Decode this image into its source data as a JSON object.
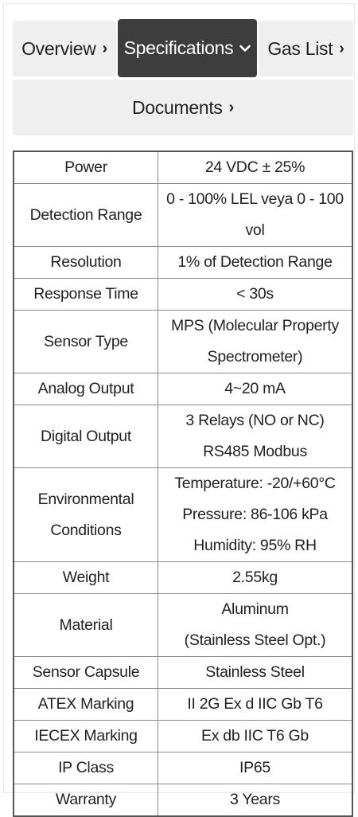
{
  "tabs": {
    "overview": {
      "label": "Overview",
      "icon": "chevron-right-icon"
    },
    "specifications": {
      "label": "Specifications",
      "icon": "chevron-down-icon",
      "active": true
    },
    "gas_list": {
      "label": "Gas List",
      "icon": "chevron-right-icon"
    },
    "documents": {
      "label": "Documents",
      "icon": "chevron-right-icon"
    }
  },
  "colors": {
    "active_tab_bg": "#3d3d3d",
    "inactive_tab_bg": "#efefef",
    "table_border": "#555555"
  },
  "specs": [
    {
      "label": [
        "Power"
      ],
      "value": [
        "24 VDC ± 25%"
      ]
    },
    {
      "label": [
        "Detection Range"
      ],
      "value": [
        "0 - 100% LEL veya 0 - 100 vol"
      ]
    },
    {
      "label": [
        "Resolution"
      ],
      "value": [
        "1% of Detection Range"
      ]
    },
    {
      "label": [
        "Response Time"
      ],
      "value": [
        "< 30s"
      ]
    },
    {
      "label": [
        "Sensor Type"
      ],
      "value": [
        "MPS (Molecular Property",
        "Spectrometer)"
      ]
    },
    {
      "label": [
        "Analog Output"
      ],
      "value": [
        "4~20 mA"
      ]
    },
    {
      "label": [
        "Digital Output"
      ],
      "value": [
        "3 Relays (NO or NC)",
        "RS485 Modbus"
      ]
    },
    {
      "label": [
        "Environmental",
        "Conditions"
      ],
      "value": [
        "Temperature: -20/+60°C",
        "Pressure: 86-106 kPa",
        "Humidity: 95% RH"
      ]
    },
    {
      "label": [
        "Weight"
      ],
      "value": [
        "2.55kg"
      ]
    },
    {
      "label": [
        "Material"
      ],
      "value": [
        "Aluminum",
        "(Stainless Steel Opt.)"
      ]
    },
    {
      "label": [
        "Sensor Capsule"
      ],
      "value": [
        "Stainless Steel"
      ]
    },
    {
      "label": [
        "ATEX Marking"
      ],
      "value": [
        "II 2G Ex d IIC Gb T6"
      ]
    },
    {
      "label": [
        "IECEX Marking"
      ],
      "value": [
        "Ex db IIC T6 Gb"
      ]
    },
    {
      "label": [
        "IP Class"
      ],
      "value": [
        "IP65"
      ]
    },
    {
      "label": [
        "Warranty"
      ],
      "value": [
        "3 Years"
      ]
    }
  ]
}
